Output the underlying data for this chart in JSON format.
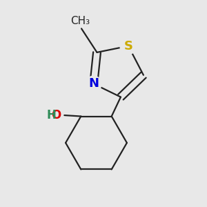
{
  "background_color": "#e8e8e8",
  "bond_color": "#222222",
  "bond_width": 1.6,
  "S_color": "#ccaa00",
  "N_color": "#0000dd",
  "O_color": "#dd0000",
  "H_color": "#2e8b57",
  "C_color": "#222222",
  "font_size": 12,
  "xlim": [
    0.0,
    1.0
  ],
  "ylim": [
    0.0,
    1.0
  ]
}
